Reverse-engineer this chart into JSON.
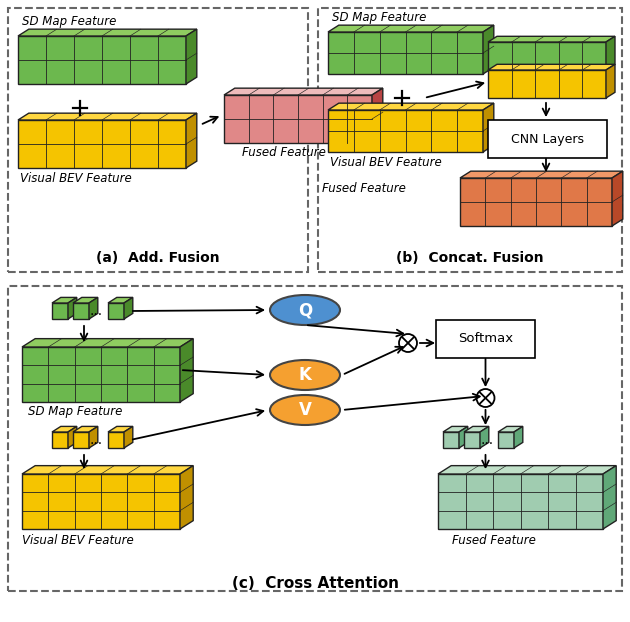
{
  "fig_width": 6.3,
  "fig_height": 6.22,
  "dpi": 100,
  "bg_color": "#ffffff",
  "green_face": "#6cb84e",
  "green_top": "#8fcc60",
  "green_side": "#4a8a2a",
  "yellow_face": "#f5c400",
  "yellow_top": "#ffd740",
  "yellow_side": "#c09000",
  "red_face": "#e08888",
  "red_top": "#eebbbb",
  "red_side": "#b84444",
  "orange_face": "#e07848",
  "orange_top": "#f09868",
  "orange_side": "#b84828",
  "mint_face": "#a0ccb0",
  "mint_top": "#c0e0c8",
  "mint_side": "#60a878",
  "blue_ellipse": "#4e90d0",
  "orange_ellipse": "#f5a030",
  "caption_a": "(a)  Add. Fusion",
  "caption_b": "(b)  Concat. Fusion",
  "caption_c": "(c)  Cross Attention"
}
